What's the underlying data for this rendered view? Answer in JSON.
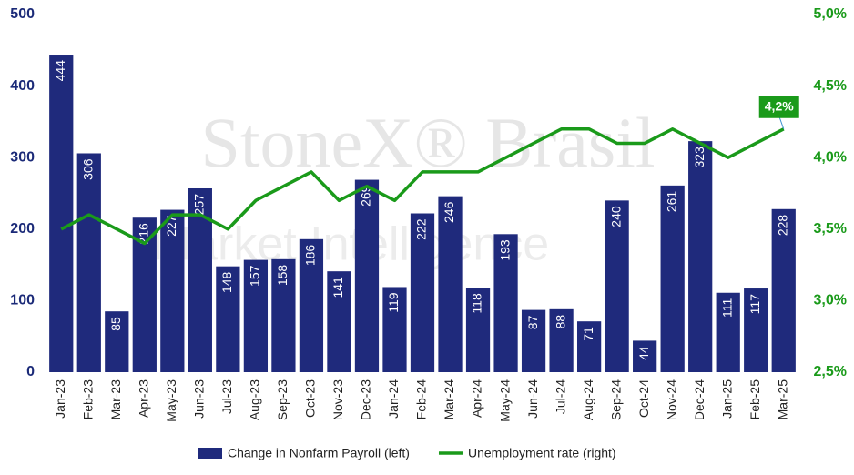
{
  "chart_data": {
    "type": "bar_line",
    "watermark": "StoneX® Brasil",
    "watermark_subtitle": "Market Intelligence",
    "categories": [
      "Jan-23",
      "Feb-23",
      "Mar-23",
      "Apr-23",
      "May-23",
      "Jun-23",
      "Jul-23",
      "Aug-23",
      "Sep-23",
      "Oct-23",
      "Nov-23",
      "Dec-23",
      "Jan-24",
      "Feb-24",
      "Mar-24",
      "Apr-24",
      "May-24",
      "Jun-24",
      "Jul-24",
      "Aug-24",
      "Sep-24",
      "Oct-24",
      "Nov-24",
      "Dec-24",
      "Jan-25",
      "Feb-25",
      "Mar-25"
    ],
    "series": [
      {
        "name": "Change in Nonfarm Payroll (left)",
        "color": "#1f2a7c",
        "type": "bar",
        "axis": "y",
        "values": [
          444,
          306,
          85,
          216,
          227,
          257,
          148,
          157,
          158,
          186,
          141,
          269,
          119,
          222,
          246,
          118,
          193,
          87,
          88,
          71,
          240,
          44,
          261,
          323,
          111,
          117,
          228
        ]
      },
      {
        "name": "Unemployment rate (right)",
        "color": "#1a9a1a",
        "type": "line",
        "axis": "y2",
        "values": [
          3.5,
          3.6,
          3.5,
          3.4,
          3.6,
          3.6,
          3.5,
          3.7,
          3.8,
          3.9,
          3.7,
          3.8,
          3.7,
          3.9,
          3.9,
          3.9,
          4.0,
          4.1,
          4.2,
          4.2,
          4.1,
          4.1,
          4.2,
          4.1,
          4.0,
          4.1,
          4.2
        ],
        "value_labels": [
          null,
          null,
          null,
          null,
          null,
          null,
          null,
          null,
          null,
          null,
          null,
          null,
          null,
          null,
          null,
          null,
          null,
          null,
          null,
          null,
          null,
          null,
          null,
          null,
          null,
          null,
          "4,2%"
        ]
      }
    ],
    "ylim": [
      0,
      500
    ],
    "yticks": [
      0,
      100,
      200,
      300,
      400,
      500
    ],
    "y2lim": [
      2.5,
      5.0
    ],
    "y2ticks": [
      {
        "value": 2.5,
        "label": "2,5%"
      },
      {
        "value": 3.0,
        "label": "3,0%"
      },
      {
        "value": 3.5,
        "label": "3,5%"
      },
      {
        "value": 4.0,
        "label": "4,0%"
      },
      {
        "value": 4.5,
        "label": "4,5%"
      },
      {
        "value": 5.0,
        "label": "5,0%"
      }
    ],
    "grid": false,
    "legend": "bottom"
  }
}
